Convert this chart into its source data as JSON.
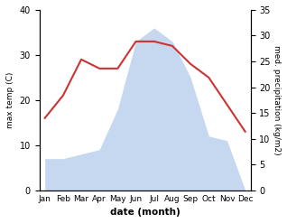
{
  "months": [
    "Jan",
    "Feb",
    "Mar",
    "Apr",
    "May",
    "Jun",
    "Jul",
    "Aug",
    "Sep",
    "Oct",
    "Nov",
    "Dec"
  ],
  "temperature": [
    16,
    21,
    29,
    27,
    27,
    33,
    33,
    32,
    28,
    25,
    19,
    13
  ],
  "precipitation": [
    7,
    7,
    8,
    9,
    18,
    33,
    36,
    33,
    25,
    12,
    11,
    0
  ],
  "temp_color": "#cc3333",
  "precip_color_fill": "#c5d8f0",
  "temp_ylim": [
    0,
    40
  ],
  "precip_ylim": [
    0,
    35
  ],
  "temp_yticks": [
    0,
    10,
    20,
    30,
    40
  ],
  "precip_yticks": [
    0,
    5,
    10,
    15,
    20,
    25,
    30,
    35
  ],
  "xlabel": "date (month)",
  "ylabel_left": "max temp (C)",
  "ylabel_right": "med. precipitation (kg/m2)"
}
